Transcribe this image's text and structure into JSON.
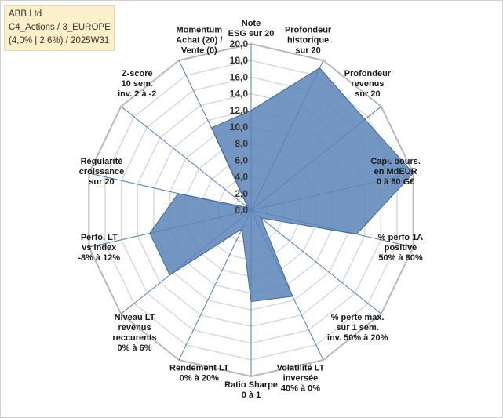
{
  "chart_data": {
    "type": "radar",
    "title_lines": [
      "ABB Ltd",
      "C4_Actions / 3_EUROPE",
      "(4,0% | 2,6%) / 2025W31"
    ],
    "range": [
      0,
      20
    ],
    "ticks": [
      "0,0",
      "2,0",
      "4,0",
      "6,0",
      "8,0",
      "10,0",
      "12,0",
      "14,0",
      "16,0",
      "18,0",
      "20,0"
    ],
    "grid": true,
    "fill_color": "#5b84b8",
    "line_color": "#3c66a0",
    "grid_color": "#d9d9d9",
    "axes": [
      {
        "label": [
          "Note",
          "ESG sur 20"
        ],
        "value": 12.0
      },
      {
        "label": [
          "Profondeur",
          "historique",
          "sur 20"
        ],
        "value": 19.0
      },
      {
        "label": [
          "Profondeur",
          "revenus",
          "sur 20"
        ],
        "value": 17.5
      },
      {
        "label": [
          "Capi. bours.",
          "en MdEUR",
          "0 à 60 G€"
        ],
        "value": 20.0
      },
      {
        "label": [
          "% perfo 1A",
          "positive",
          "50% à 80%"
        ],
        "value": 13.0
      },
      {
        "label": [
          "% perte max.",
          "sur 1 sem.",
          "inv. 50% à 20%"
        ],
        "value": 1.5
      },
      {
        "label": [
          "Volatilité LT",
          "inversée",
          "40% à 0%"
        ],
        "value": 11.5
      },
      {
        "label": [
          "Ratio Sharpe",
          "0 à 1"
        ],
        "value": 11.0
      },
      {
        "label": [
          "Rendement LT",
          "0% à 20%"
        ],
        "value": 2.5
      },
      {
        "label": [
          "Niveau LT",
          "revenus",
          "reccurents",
          "0% à 6%"
        ],
        "value": 12.5
      },
      {
        "label": [
          "Perfo. LT",
          "vs index",
          "-8% à 12%"
        ],
        "value": 12.5
      },
      {
        "label": [
          "Régularité",
          "croissance",
          "sur 20"
        ],
        "value": 9.0
      },
      {
        "label": [
          "Z-score",
          "10 sem.",
          "inv. 2 à -2"
        ],
        "value": 0.5
      },
      {
        "label": [
          "Momentum",
          "Achat (20) /",
          "Vente (0)"
        ],
        "value": 11.0
      }
    ]
  }
}
